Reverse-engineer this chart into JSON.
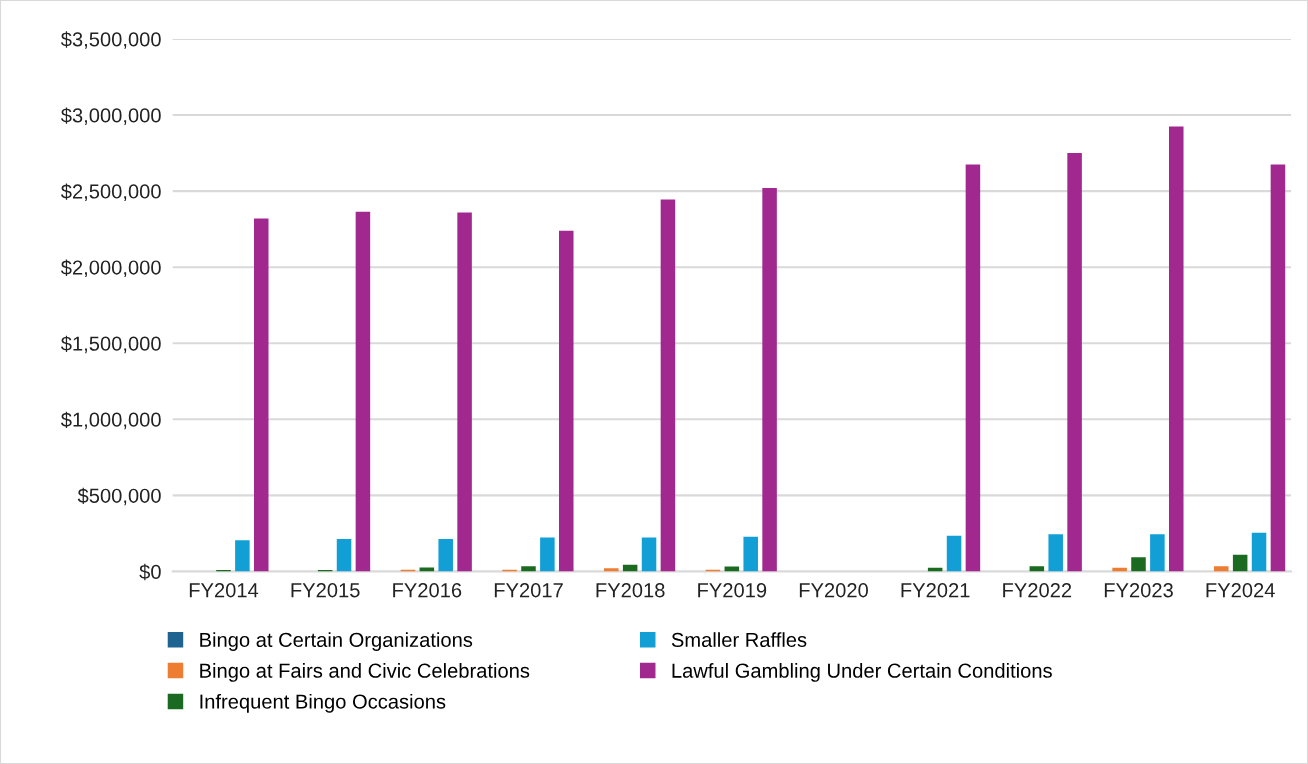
{
  "chart_data": {
    "type": "bar",
    "categories": [
      "FY2014",
      "FY2015",
      "FY2016",
      "FY2017",
      "FY2018",
      "FY2019",
      "FY2020",
      "FY2021",
      "FY2022",
      "FY2023",
      "FY2024"
    ],
    "series": [
      {
        "name": "Bingo at Certain Organizations",
        "color": "#1f6391",
        "values": [
          0,
          0,
          0,
          0,
          0,
          0,
          0,
          0,
          0,
          0,
          0
        ]
      },
      {
        "name": "Bingo at Fairs and Civic Celebrations",
        "color": "#ed7d31",
        "values": [
          0,
          0,
          12000,
          12000,
          21000,
          12000,
          0,
          0,
          0,
          24000,
          34000
        ]
      },
      {
        "name": "Infrequent Bingo Occasions",
        "color": "#1a6b21",
        "values": [
          10000,
          10000,
          26000,
          35000,
          45000,
          32000,
          0,
          24000,
          34000,
          93000,
          110000
        ]
      },
      {
        "name": "Smaller Raffles",
        "color": "#119fd6",
        "values": [
          205000,
          213000,
          213000,
          224000,
          224000,
          228000,
          0,
          235000,
          245000,
          245000,
          255000
        ]
      },
      {
        "name": "Lawful Gambling Under Certain Conditions",
        "color": "#a0288f",
        "values": [
          2320000,
          2365000,
          2360000,
          2240000,
          2445000,
          2520000,
          0,
          2675000,
          2750000,
          2925000,
          2675000
        ]
      }
    ],
    "ylim": [
      0,
      3500000
    ],
    "yticks": [
      {
        "value": 0,
        "label": "$0"
      },
      {
        "value": 500000,
        "label": "$500,000"
      },
      {
        "value": 1000000,
        "label": "$1,000,000"
      },
      {
        "value": 1500000,
        "label": "$1,500,000"
      },
      {
        "value": 2000000,
        "label": "$2,000,000"
      },
      {
        "value": 2500000,
        "label": "$2,500,000"
      },
      {
        "value": 3000000,
        "label": "$3,000,000"
      },
      {
        "value": 3500000,
        "label": "$3,500,000"
      }
    ],
    "grid": "y",
    "legend": "bottom"
  }
}
